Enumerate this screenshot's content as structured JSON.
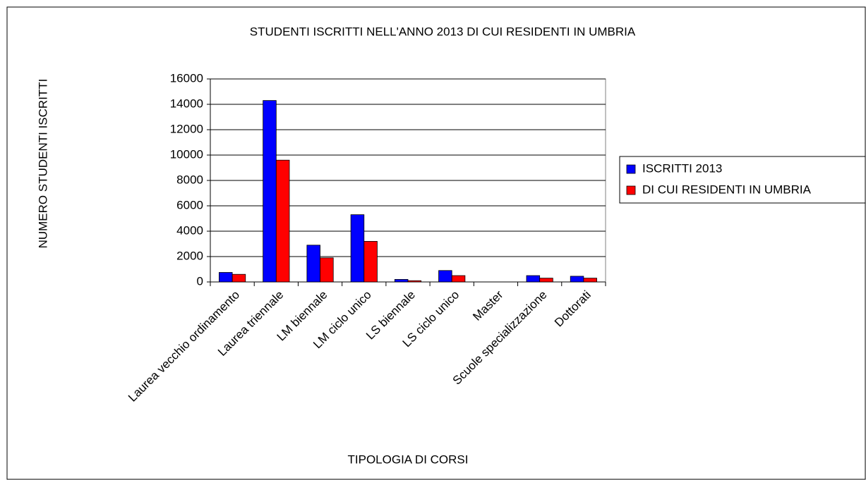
{
  "chart_data": {
    "type": "bar",
    "title": "STUDENTI ISCRITTI NELL'ANNO 2013 DI CUI RESIDENTI IN UMBRIA",
    "x_label": "TIPOLOGIA DI CORSI",
    "y_label": "NUMERO STUDENTI ISCRITTI",
    "categories": [
      "Laurea vecchio ordinamento",
      "Laurea triennale",
      "LM biennale",
      "LM ciclo unico",
      "LS biennale",
      "LS ciclo unico",
      "Master",
      "Scuole specializzazione",
      "Dottorati"
    ],
    "series": [
      {
        "name": "ISCRITTI 2013",
        "color": "#0000ff",
        "values": [
          750,
          14300,
          2900,
          5300,
          200,
          900,
          0,
          500,
          450
        ]
      },
      {
        "name": "DI CUI RESIDENTI IN UMBRIA",
        "color": "#ff0000",
        "values": [
          600,
          9600,
          1900,
          3200,
          100,
          500,
          0,
          300,
          300
        ]
      }
    ],
    "ylim": [
      0,
      16000
    ],
    "yticks": [
      0,
      2000,
      4000,
      6000,
      8000,
      10000,
      12000,
      14000,
      16000
    ],
    "grid": true,
    "legend": "right"
  }
}
